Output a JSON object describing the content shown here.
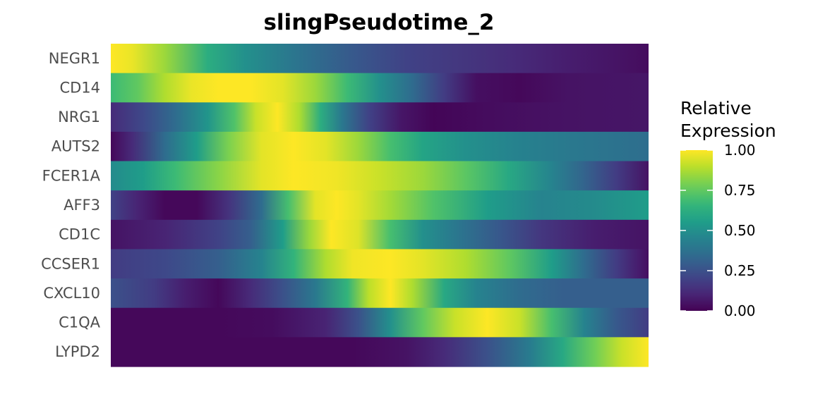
{
  "chart_data": {
    "type": "heatmap",
    "title": "slingPseudotime_2",
    "colormap": "viridis",
    "rows": [
      {
        "name": "NEGR1",
        "profile": [
          [
            0,
            1.0
          ],
          [
            0.04,
            0.97
          ],
          [
            0.1,
            0.85
          ],
          [
            0.18,
            0.62
          ],
          [
            0.25,
            0.5
          ],
          [
            0.35,
            0.38
          ],
          [
            0.45,
            0.28
          ],
          [
            0.55,
            0.2
          ],
          [
            0.65,
            0.16
          ],
          [
            0.75,
            0.12
          ],
          [
            0.85,
            0.08
          ],
          [
            0.95,
            0.05
          ],
          [
            1,
            0.03
          ]
        ]
      },
      {
        "name": "CD14",
        "profile": [
          [
            0,
            0.68
          ],
          [
            0.05,
            0.75
          ],
          [
            0.1,
            0.88
          ],
          [
            0.15,
            0.97
          ],
          [
            0.2,
            1.0
          ],
          [
            0.26,
            1.0
          ],
          [
            0.32,
            0.96
          ],
          [
            0.38,
            0.85
          ],
          [
            0.44,
            0.68
          ],
          [
            0.5,
            0.5
          ],
          [
            0.56,
            0.35
          ],
          [
            0.62,
            0.18
          ],
          [
            0.68,
            0.04
          ],
          [
            0.76,
            0.02
          ],
          [
            0.85,
            0.05
          ],
          [
            1,
            0.06
          ]
        ]
      },
      {
        "name": "NRG1",
        "profile": [
          [
            0,
            0.12
          ],
          [
            0.06,
            0.22
          ],
          [
            0.12,
            0.35
          ],
          [
            0.18,
            0.52
          ],
          [
            0.23,
            0.72
          ],
          [
            0.27,
            0.92
          ],
          [
            0.31,
            1.0
          ],
          [
            0.35,
            0.88
          ],
          [
            0.39,
            0.62
          ],
          [
            0.43,
            0.4
          ],
          [
            0.48,
            0.2
          ],
          [
            0.54,
            0.06
          ],
          [
            0.6,
            0.01
          ],
          [
            0.7,
            0.03
          ],
          [
            0.85,
            0.05
          ],
          [
            1,
            0.06
          ]
        ]
      },
      {
        "name": "AUTS2",
        "profile": [
          [
            0,
            0.02
          ],
          [
            0.04,
            0.12
          ],
          [
            0.1,
            0.35
          ],
          [
            0.16,
            0.55
          ],
          [
            0.22,
            0.8
          ],
          [
            0.28,
            0.96
          ],
          [
            0.34,
            1.0
          ],
          [
            0.4,
            0.96
          ],
          [
            0.46,
            0.85
          ],
          [
            0.52,
            0.7
          ],
          [
            0.58,
            0.58
          ],
          [
            0.66,
            0.5
          ],
          [
            0.76,
            0.44
          ],
          [
            0.86,
            0.4
          ],
          [
            1,
            0.36
          ]
        ]
      },
      {
        "name": "FCER1A",
        "profile": [
          [
            0,
            0.48
          ],
          [
            0.06,
            0.55
          ],
          [
            0.12,
            0.68
          ],
          [
            0.2,
            0.82
          ],
          [
            0.28,
            0.96
          ],
          [
            0.34,
            1.0
          ],
          [
            0.42,
            0.98
          ],
          [
            0.5,
            0.92
          ],
          [
            0.58,
            0.85
          ],
          [
            0.66,
            0.74
          ],
          [
            0.74,
            0.6
          ],
          [
            0.82,
            0.45
          ],
          [
            0.88,
            0.32
          ],
          [
            0.94,
            0.18
          ],
          [
            1,
            0.05
          ]
        ]
      },
      {
        "name": "AFF3",
        "profile": [
          [
            0,
            0.2
          ],
          [
            0.05,
            0.1
          ],
          [
            0.1,
            0.02
          ],
          [
            0.16,
            0.02
          ],
          [
            0.22,
            0.15
          ],
          [
            0.28,
            0.35
          ],
          [
            0.33,
            0.7
          ],
          [
            0.38,
            0.96
          ],
          [
            0.42,
            1.0
          ],
          [
            0.46,
            0.96
          ],
          [
            0.52,
            0.86
          ],
          [
            0.6,
            0.72
          ],
          [
            0.7,
            0.55
          ],
          [
            0.8,
            0.45
          ],
          [
            0.9,
            0.48
          ],
          [
            1,
            0.55
          ]
        ]
      },
      {
        "name": "CD1C",
        "profile": [
          [
            0,
            0.05
          ],
          [
            0.1,
            0.1
          ],
          [
            0.2,
            0.2
          ],
          [
            0.26,
            0.3
          ],
          [
            0.32,
            0.55
          ],
          [
            0.37,
            0.85
          ],
          [
            0.41,
            1.0
          ],
          [
            0.46,
            0.95
          ],
          [
            0.52,
            0.7
          ],
          [
            0.58,
            0.5
          ],
          [
            0.64,
            0.4
          ],
          [
            0.72,
            0.28
          ],
          [
            0.8,
            0.16
          ],
          [
            0.9,
            0.08
          ],
          [
            1,
            0.05
          ]
        ]
      },
      {
        "name": "CCSER1",
        "profile": [
          [
            0,
            0.18
          ],
          [
            0.1,
            0.22
          ],
          [
            0.2,
            0.3
          ],
          [
            0.28,
            0.45
          ],
          [
            0.34,
            0.65
          ],
          [
            0.4,
            0.88
          ],
          [
            0.45,
            0.98
          ],
          [
            0.52,
            1.0
          ],
          [
            0.58,
            0.96
          ],
          [
            0.66,
            0.88
          ],
          [
            0.74,
            0.75
          ],
          [
            0.82,
            0.55
          ],
          [
            0.88,
            0.35
          ],
          [
            0.94,
            0.18
          ],
          [
            0.98,
            0.08
          ],
          [
            1,
            0.04
          ]
        ]
      },
      {
        "name": "CXCL10",
        "profile": [
          [
            0,
            0.25
          ],
          [
            0.08,
            0.18
          ],
          [
            0.14,
            0.08
          ],
          [
            0.2,
            0.02
          ],
          [
            0.26,
            0.12
          ],
          [
            0.32,
            0.25
          ],
          [
            0.38,
            0.4
          ],
          [
            0.44,
            0.65
          ],
          [
            0.48,
            0.9
          ],
          [
            0.52,
            1.0
          ],
          [
            0.56,
            0.88
          ],
          [
            0.62,
            0.6
          ],
          [
            0.68,
            0.45
          ],
          [
            0.76,
            0.35
          ],
          [
            0.84,
            0.3
          ],
          [
            1,
            0.3
          ]
        ]
      },
      {
        "name": "C1QA",
        "profile": [
          [
            0,
            0.02
          ],
          [
            0.2,
            0.02
          ],
          [
            0.3,
            0.03
          ],
          [
            0.4,
            0.1
          ],
          [
            0.46,
            0.25
          ],
          [
            0.52,
            0.5
          ],
          [
            0.58,
            0.75
          ],
          [
            0.64,
            0.92
          ],
          [
            0.7,
            1.0
          ],
          [
            0.76,
            0.92
          ],
          [
            0.82,
            0.7
          ],
          [
            0.88,
            0.45
          ],
          [
            0.94,
            0.28
          ],
          [
            1,
            0.18
          ]
        ]
      },
      {
        "name": "LYPD2",
        "profile": [
          [
            0,
            0.02
          ],
          [
            0.3,
            0.02
          ],
          [
            0.45,
            0.02
          ],
          [
            0.55,
            0.05
          ],
          [
            0.62,
            0.12
          ],
          [
            0.7,
            0.25
          ],
          [
            0.78,
            0.42
          ],
          [
            0.84,
            0.6
          ],
          [
            0.9,
            0.78
          ],
          [
            0.95,
            0.92
          ],
          [
            1,
            1.0
          ]
        ]
      }
    ],
    "legend": {
      "title_lines": [
        "Relative",
        "Expression"
      ],
      "ticks": [
        1.0,
        0.75,
        0.5,
        0.25,
        0.0
      ],
      "tick_labels": [
        "1.00",
        "0.75",
        "0.50",
        "0.25",
        "0.00"
      ]
    }
  }
}
